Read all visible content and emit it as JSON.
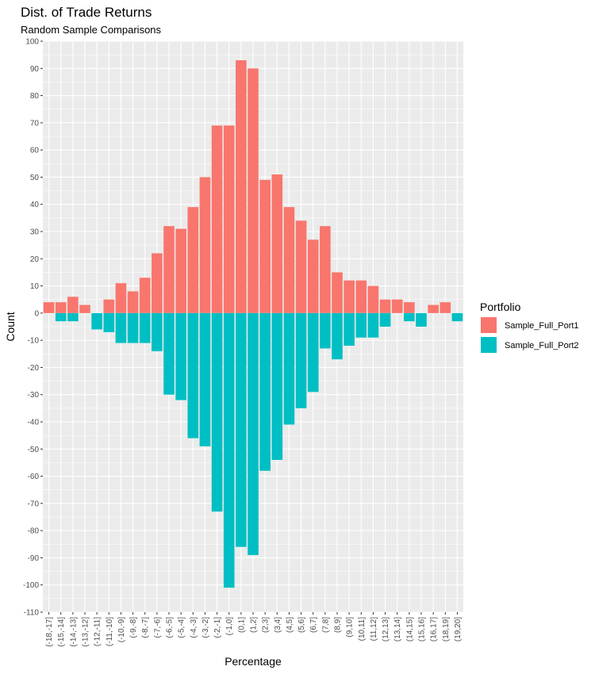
{
  "chart_data": {
    "type": "bar",
    "title": "Dist. of Trade Returns",
    "subtitle": "Random Sample Comparisons",
    "xlabel": "Percentage",
    "ylabel": "Count",
    "ylim": [
      -110,
      100
    ],
    "yticks": [
      100,
      90,
      80,
      70,
      60,
      50,
      40,
      30,
      20,
      10,
      0,
      -10,
      -20,
      -30,
      -40,
      -50,
      -60,
      -70,
      -80,
      -90,
      -100,
      -110
    ],
    "grid": true,
    "legend_position": "right",
    "legend_title": "Portfolio",
    "categories": [
      "(-18,-17]",
      "(-15,-14]",
      "(-14,-13]",
      "(-13,-12]",
      "(-12,-11]",
      "(-11,-10]",
      "(-10,-9]",
      "(-9,-8]",
      "(-8,-7]",
      "(-7,-6]",
      "(-6,-5]",
      "(-5,-4]",
      "(-4,-3]",
      "(-3,-2]",
      "(-2,-1]",
      "(-1,0]",
      "(0,1]",
      "(1,2]",
      "(2,3]",
      "(3,4]",
      "(4,5]",
      "(5,6]",
      "(6,7]",
      "(7,8]",
      "(8,9]",
      "(9,10]",
      "(10,11]",
      "(11,12]",
      "(12,13]",
      "(13,14]",
      "(14,15]",
      "(15,16]",
      "(16,17]",
      "(18,19]",
      "(19,20]"
    ],
    "series": [
      {
        "name": "Sample_Full_Port1",
        "color": "#F8766D",
        "values": [
          4,
          4,
          6,
          3,
          0,
          5,
          11,
          8,
          13,
          22,
          32,
          31,
          39,
          50,
          69,
          69,
          93,
          90,
          49,
          51,
          39,
          34,
          27,
          32,
          15,
          12,
          12,
          10,
          5,
          5,
          4,
          0,
          3,
          4,
          0
        ]
      },
      {
        "name": "Sample_Full_Port2",
        "color": "#00BFC4",
        "values": [
          0,
          -3,
          -3,
          0,
          -6,
          -7,
          -11,
          -11,
          -11,
          -14,
          -30,
          -32,
          -46,
          -49,
          -73,
          -101,
          -86,
          -89,
          -58,
          -54,
          -41,
          -35,
          -29,
          -13,
          -17,
          -12,
          -9,
          -9,
          -5,
          0,
          -3,
          -5,
          0,
          0,
          -3
        ]
      }
    ]
  }
}
